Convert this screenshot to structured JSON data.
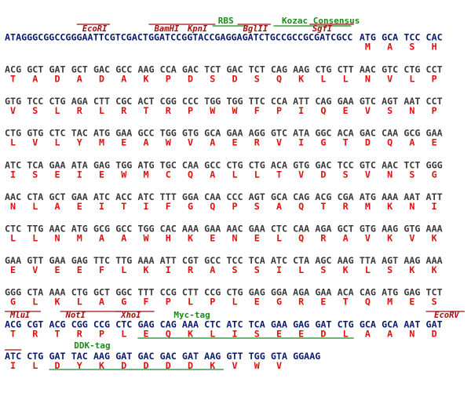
{
  "sequence": {
    "leader": "ATAGGGCGGCCGGGAATTCGTCGACTGGATCCGGTACCGAGGAGATCTGCCGCCGCGATCGCC",
    "rows": [
      {
        "codons": [
          "ATG",
          "GCA",
          "TCC",
          "CAC"
        ],
        "aminoacids": [
          "M",
          "A",
          "S",
          "H"
        ]
      },
      {
        "codons": [
          "ACG",
          "GCT",
          "GAT",
          "GCT",
          "GAC",
          "GCC",
          "AAG",
          "CCA",
          "GAC",
          "TCT",
          "GAC",
          "TCT",
          "CAG",
          "AAG",
          "CTG",
          "CTT",
          "AAC",
          "GTC",
          "CTG",
          "CCT"
        ],
        "aminoacids": [
          "T",
          "A",
          "D",
          "A",
          "D",
          "A",
          "K",
          "P",
          "D",
          "S",
          "D",
          "S",
          "Q",
          "K",
          "L",
          "L",
          "N",
          "V",
          "L",
          "P"
        ]
      },
      {
        "codons": [
          "GTG",
          "TCC",
          "CTG",
          "AGA",
          "CTT",
          "CGC",
          "ACT",
          "CGG",
          "CCC",
          "TGG",
          "TGG",
          "TTC",
          "CCA",
          "ATT",
          "CAG",
          "GAA",
          "GTC",
          "AGT",
          "AAT",
          "CCT"
        ],
        "aminoacids": [
          "V",
          "S",
          "L",
          "R",
          "L",
          "R",
          "T",
          "R",
          "P",
          "W",
          "W",
          "F",
          "P",
          "I",
          "Q",
          "E",
          "V",
          "S",
          "N",
          "P"
        ]
      },
      {
        "codons": [
          "CTG",
          "GTG",
          "CTC",
          "TAC",
          "ATG",
          "GAA",
          "GCC",
          "TGG",
          "GTG",
          "GCA",
          "GAA",
          "AGG",
          "GTC",
          "ATA",
          "GGC",
          "ACA",
          "GAC",
          "CAA",
          "GCG",
          "GAA"
        ],
        "aminoacids": [
          "L",
          "V",
          "L",
          "Y",
          "M",
          "E",
          "A",
          "W",
          "V",
          "A",
          "E",
          "R",
          "V",
          "I",
          "G",
          "T",
          "D",
          "Q",
          "A",
          "E"
        ]
      },
      {
        "codons": [
          "ATC",
          "TCA",
          "GAA",
          "ATA",
          "GAG",
          "TGG",
          "ATG",
          "TGC",
          "CAA",
          "GCC",
          "CTG",
          "CTG",
          "ACA",
          "GTG",
          "GAC",
          "TCC",
          "GTC",
          "AAC",
          "TCT",
          "GGG"
        ],
        "aminoacids": [
          "I",
          "S",
          "E",
          "I",
          "E",
          "W",
          "M",
          "C",
          "Q",
          "A",
          "L",
          "L",
          "T",
          "V",
          "D",
          "S",
          "V",
          "N",
          "S",
          "G"
        ]
      },
      {
        "codons": [
          "AAC",
          "CTA",
          "GCT",
          "GAA",
          "ATC",
          "ACC",
          "ATC",
          "TTT",
          "GGA",
          "CAA",
          "CCC",
          "AGT",
          "GCA",
          "CAG",
          "ACG",
          "CGA",
          "ATG",
          "AAA",
          "AAT",
          "ATT"
        ],
        "aminoacids": [
          "N",
          "L",
          "A",
          "E",
          "I",
          "T",
          "I",
          "F",
          "G",
          "Q",
          "P",
          "S",
          "A",
          "Q",
          "T",
          "R",
          "M",
          "K",
          "N",
          "I"
        ]
      },
      {
        "codons": [
          "CTC",
          "TTG",
          "AAC",
          "ATG",
          "GCG",
          "GCC",
          "TGG",
          "CAC",
          "AAA",
          "GAA",
          "AAC",
          "GAA",
          "CTC",
          "CAA",
          "AGA",
          "GCT",
          "GTG",
          "AAG",
          "GTG",
          "AAA"
        ],
        "aminoacids": [
          "L",
          "L",
          "N",
          "M",
          "A",
          "A",
          "W",
          "H",
          "K",
          "E",
          "N",
          "E",
          "L",
          "Q",
          "R",
          "A",
          "V",
          "K",
          "V",
          "K"
        ]
      },
      {
        "codons": [
          "GAA",
          "GTT",
          "GAA",
          "GAG",
          "TTC",
          "TTG",
          "AAA",
          "ATT",
          "CGT",
          "GCC",
          "TCC",
          "TCA",
          "ATC",
          "CTA",
          "AGC",
          "AAG",
          "TTA",
          "AGT",
          "AAG",
          "AAA"
        ],
        "aminoacids": [
          "E",
          "V",
          "E",
          "E",
          "F",
          "L",
          "K",
          "I",
          "R",
          "A",
          "S",
          "S",
          "I",
          "L",
          "S",
          "K",
          "L",
          "S",
          "K",
          "K"
        ]
      },
      {
        "codons": [
          "GGG",
          "CTA",
          "AAA",
          "CTG",
          "GCT",
          "GGC",
          "TTT",
          "CCG",
          "CTT",
          "CCG",
          "CTG",
          "GAG",
          "GGA",
          "AGA",
          "GAA",
          "ACA",
          "CAG",
          "ATG",
          "GAG",
          "TCT"
        ],
        "aminoacids": [
          "G",
          "L",
          "K",
          "L",
          "A",
          "G",
          "F",
          "P",
          "L",
          "P",
          "L",
          "E",
          "G",
          "R",
          "E",
          "T",
          "Q",
          "M",
          "E",
          "S"
        ]
      },
      {
        "codons": [
          "ACG",
          "CGT",
          "ACG",
          "CGG",
          "CCG",
          "CTC",
          "GAG",
          "CAG",
          "AAA",
          "CTC",
          "ATC",
          "TCA",
          "GAA",
          "GAG",
          "GAT",
          "CTG",
          "GCA",
          "GCA",
          "AAT",
          "GAT"
        ],
        "aminoacids": [
          "T",
          "R",
          "T",
          "R",
          "P",
          "L",
          "E",
          "Q",
          "K",
          "L",
          "I",
          "S",
          "E",
          "E",
          "D",
          "L",
          "A",
          "A",
          "N",
          "D"
        ]
      },
      {
        "codons": [
          "ATC",
          "CTG",
          "GAT",
          "TAC",
          "AAG",
          "GAT",
          "GAC",
          "GAC",
          "GAT",
          "AAG",
          "GTT",
          "TGG",
          "GTA",
          "GGAAG"
        ],
        "aminoacids": [
          "I",
          "L",
          "D",
          "Y",
          "K",
          "D",
          "D",
          "D",
          "D",
          "K",
          "V",
          "W",
          "V"
        ]
      }
    ]
  },
  "features": [
    {
      "label": "RBS"
    },
    {
      "label": "Kozac Consensus"
    },
    {
      "label": "EcoRI"
    },
    {
      "label": "BamHI"
    },
    {
      "label": "KpnI"
    },
    {
      "label": "BglII"
    },
    {
      "label": "SgfI"
    },
    {
      "label": "MluI"
    },
    {
      "label": "NotI"
    },
    {
      "label": "XhoI"
    },
    {
      "label": "Myc-tag"
    },
    {
      "label": "EcoRV"
    },
    {
      "label": "DDK-tag"
    }
  ]
}
